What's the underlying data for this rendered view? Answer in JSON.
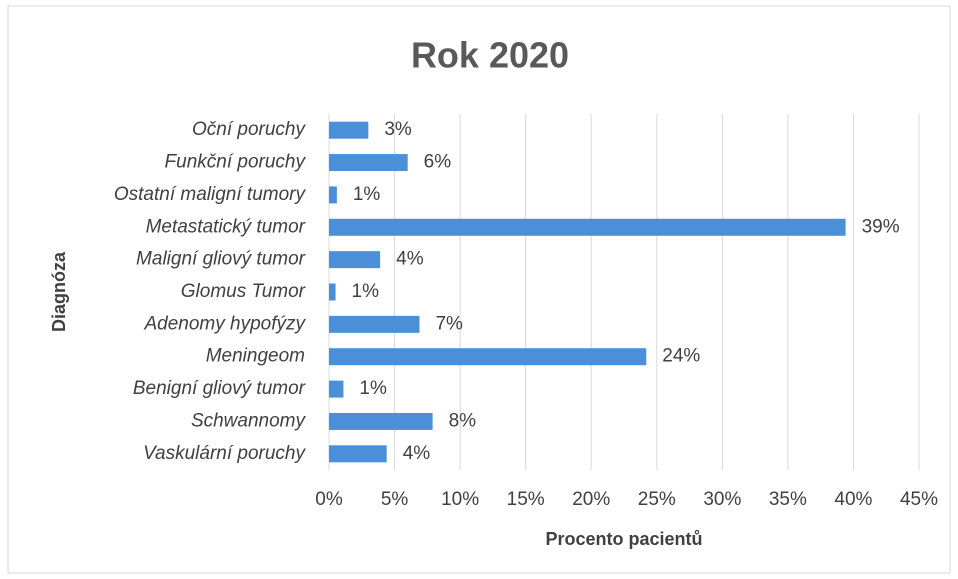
{
  "chart_data": {
    "type": "bar",
    "orientation": "horizontal",
    "title": "Rok 2020",
    "x_label": "Procento pacientů",
    "y_label": "Diagnóza",
    "categories": [
      "Oční poruchy",
      "Funkční poruchy",
      "Ostatní maligní tumory",
      "Metastatický tumor",
      "Maligní gliový tumor",
      "Glomus Tumor",
      "Adenomy hypofýzy",
      "Meningeom",
      "Benigní gliový tumor",
      "Schwannomy",
      "Vaskulární poruchy"
    ],
    "values": [
      3,
      6,
      0.6,
      39.4,
      3.9,
      0.5,
      6.9,
      24.2,
      1.1,
      7.9,
      4.4
    ],
    "value_labels": [
      "3%",
      "6%",
      "1%",
      "39%",
      "4%",
      "1%",
      "7%",
      "24%",
      "1%",
      "8%",
      "4%"
    ],
    "color": "#4a8fd8",
    "xlim": [
      0,
      45
    ],
    "xticks": [
      {
        "value": 0,
        "label": "0%"
      },
      {
        "value": 5,
        "label": "5%"
      },
      {
        "value": 10,
        "label": "10%"
      },
      {
        "value": 15,
        "label": "15%"
      },
      {
        "value": 20,
        "label": "20%"
      },
      {
        "value": 25,
        "label": "25%"
      },
      {
        "value": 30,
        "label": "30%"
      },
      {
        "value": 35,
        "label": "35%"
      },
      {
        "value": 40,
        "label": "40%"
      },
      {
        "value": 45,
        "label": "45%"
      }
    ],
    "grid": true
  }
}
